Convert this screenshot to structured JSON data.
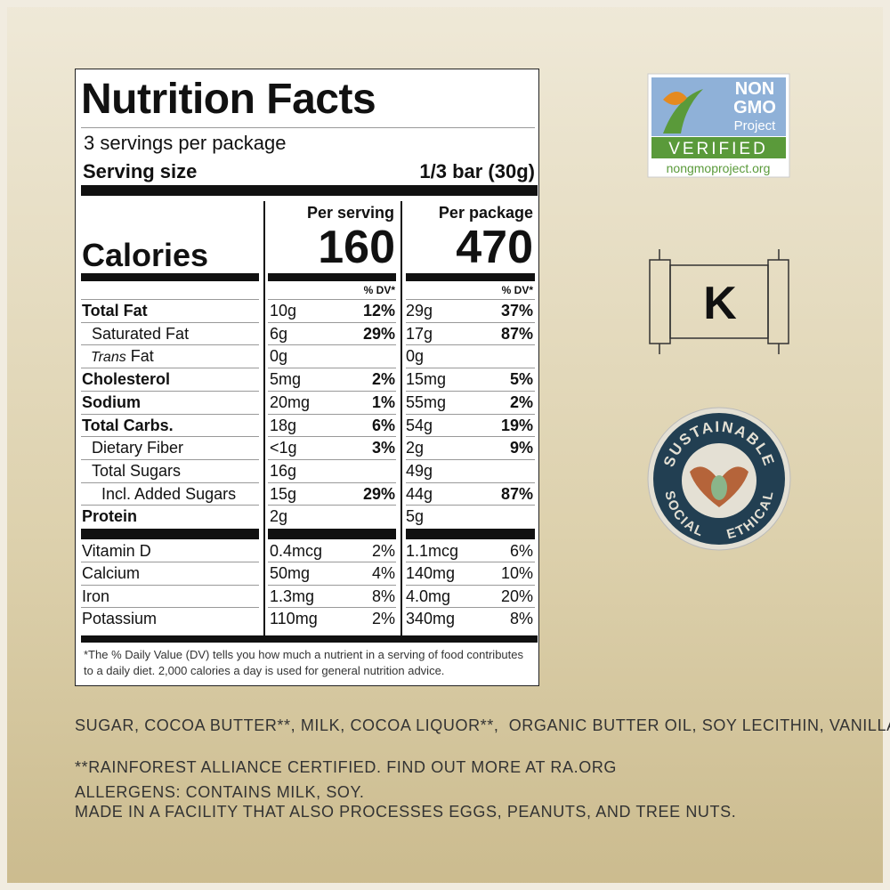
{
  "label": {
    "title": "Nutrition Facts",
    "servings": "3 servings per package",
    "serving_size_label": "Serving size",
    "serving_size": "1/3 bar (30g)",
    "per_serving": "Per serving",
    "per_package": "Per package",
    "calories_label": "Calories",
    "calories_serving": "160",
    "calories_package": "470",
    "dv_header": "% DV*",
    "nutrients": [
      {
        "name": "Total Fat",
        "serving": "10g",
        "serving_dv": "12%",
        "package": "29g",
        "package_dv": "37%"
      },
      {
        "name": "Saturated Fat",
        "serving": "6g",
        "serving_dv": "29%",
        "package": "17g",
        "package_dv": "87%"
      },
      {
        "name_italic": "Trans",
        "name": "Fat",
        "serving": "0g",
        "package": "0g"
      },
      {
        "name": "Cholesterol",
        "serving": "5mg",
        "serving_dv": "2%",
        "package": "15mg",
        "package_dv": "5%"
      },
      {
        "name": "Sodium",
        "serving": "20mg",
        "serving_dv": "1%",
        "package": "55mg",
        "package_dv": "2%"
      },
      {
        "name": "Total Carbs.",
        "serving": "18g",
        "serving_dv": "6%",
        "package": "54g",
        "package_dv": "19%"
      },
      {
        "name": "Dietary Fiber",
        "serving": "<1g",
        "serving_dv": "3%",
        "package": "2g",
        "package_dv": "9%"
      },
      {
        "name": "Total Sugars",
        "serving": "16g",
        "package": "49g"
      },
      {
        "name": "Incl. Added Sugars",
        "serving": "15g",
        "serving_dv": "29%",
        "package": "44g",
        "package_dv": "87%"
      },
      {
        "name": "Protein",
        "serving": "2g",
        "package": "5g"
      }
    ],
    "vitamins": [
      {
        "name": "Vitamin D",
        "serving": "0.4mcg",
        "serving_dv": "2%",
        "package": "1.1mcg",
        "package_dv": "6%"
      },
      {
        "name": "Calcium",
        "serving": "50mg",
        "serving_dv": "4%",
        "package": "140mg",
        "package_dv": "10%"
      },
      {
        "name": "Iron",
        "serving": "1.3mg",
        "serving_dv": "8%",
        "package": "4.0mg",
        "package_dv": "20%"
      },
      {
        "name": "Potassium",
        "serving": "110mg",
        "serving_dv": "2%",
        "package": "340mg",
        "package_dv": "8%"
      }
    ],
    "footnote": "*The % Daily Value (DV) tells you how much a nutrient in a serving of food contributes to a daily diet. 2,000 calories a day is used for general nutrition advice."
  },
  "ingredients": {
    "list": "SUGAR, COCOA BUTTER**, MILK, COCOA LIQUOR**,  ORGANIC BUTTER OIL, SOY LECITHIN, VANILLA.",
    "certification": "**RAINFOREST ALLIANCE CERTIFIED. FIND OUT MORE AT RA.ORG",
    "allergens": "ALLERGENS: CONTAINS MILK, SOY.",
    "facility": "MADE IN A FACILITY THAT ALSO PROCESSES EGGS, PEANUTS, AND TREE NUTS."
  },
  "badges": {
    "non_gmo": {
      "line1": "NON",
      "line2": "GMO",
      "line3": "Project",
      "verified": "VERIFIED",
      "url": "nongmoproject.org"
    },
    "kosher": "K",
    "sustainable": {
      "top": "SUSTAINABLE",
      "left": "SOCIAL",
      "right": "ETHICAL"
    }
  }
}
